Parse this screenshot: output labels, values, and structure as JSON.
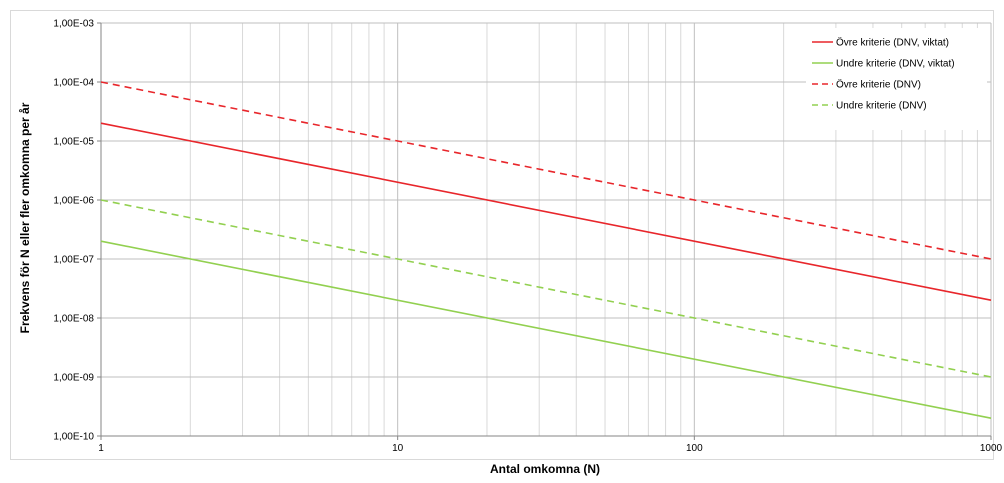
{
  "chart_data": {
    "type": "line",
    "xlabel": "Antal omkomna (N)",
    "ylabel": "Frekvens för N eller fler omkomna per år",
    "x_scale": "log",
    "y_scale": "log",
    "xlim": [
      1,
      1000
    ],
    "ylim": [
      1e-10,
      0.001
    ],
    "x_tick_labels": [
      "1",
      "10",
      "100",
      "1000"
    ],
    "y_tick_labels": [
      "1,00E-10",
      "1,00E-09",
      "1,00E-08",
      "1,00E-07",
      "1,00E-06",
      "1,00E-05",
      "1,00E-04",
      "1,00E-03"
    ],
    "grid": true,
    "legend_position": "top-right",
    "series": [
      {
        "name": "Övre kriterie (DNV, viktat)",
        "color": "#e8262b",
        "dash": "solid",
        "x": [
          1,
          1000
        ],
        "y": [
          2e-05,
          2e-08
        ]
      },
      {
        "name": "Undre kriterie (DNV, viktat)",
        "color": "#92d050",
        "dash": "solid",
        "x": [
          1,
          1000
        ],
        "y": [
          2e-07,
          2e-10
        ]
      },
      {
        "name": "Övre kriterie (DNV)",
        "color": "#e8262b",
        "dash": "dashed",
        "x": [
          1,
          1000
        ],
        "y": [
          0.0001,
          1e-07
        ]
      },
      {
        "name": "Undre kriterie (DNV)",
        "color": "#92d050",
        "dash": "dashed",
        "x": [
          1,
          1000
        ],
        "y": [
          1e-06,
          1e-09
        ]
      }
    ]
  }
}
